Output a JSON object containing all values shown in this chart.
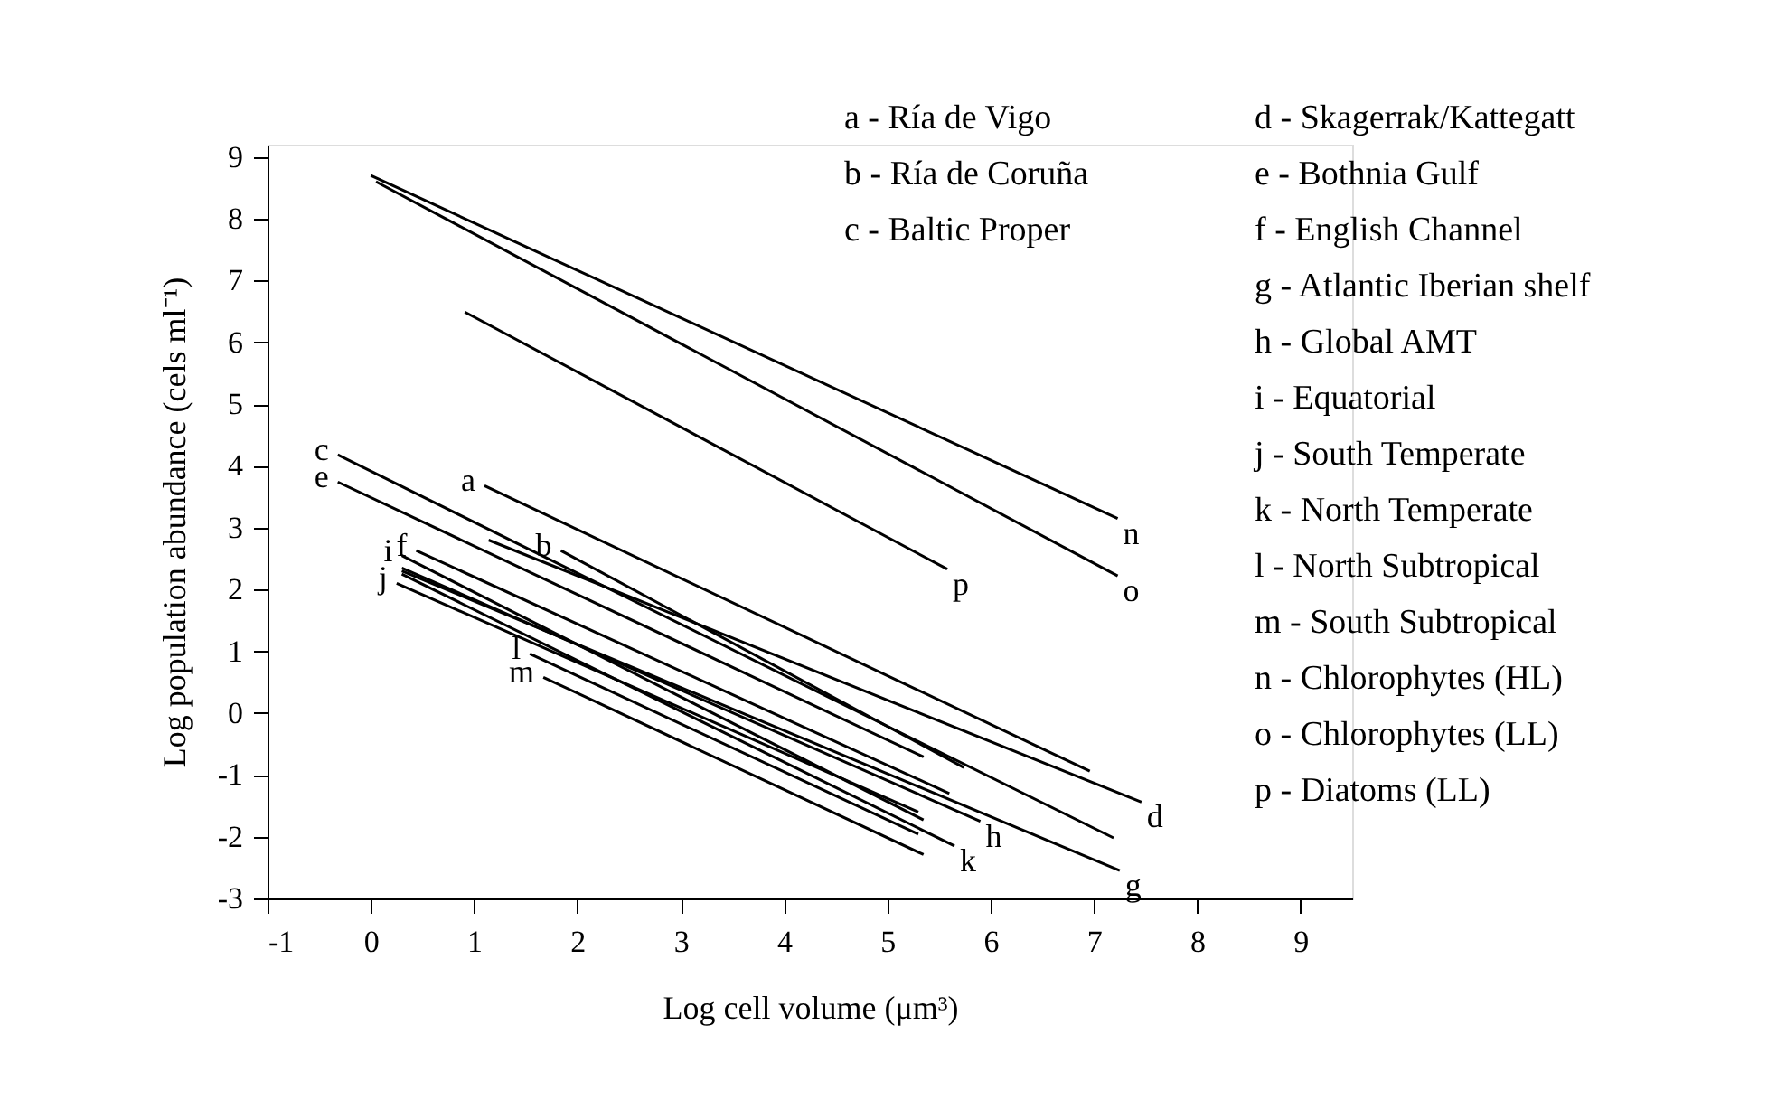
{
  "chart_data": {
    "type": "line",
    "xlabel": "Log cell volume (μm³)",
    "ylabel": "Log population abundance (cels ml⁻¹)",
    "xlim": [
      -1,
      9.5
    ],
    "ylim": [
      -3,
      9.2
    ],
    "xticks": [
      -1,
      0,
      1,
      2,
      3,
      4,
      5,
      6,
      7,
      8,
      9
    ],
    "yticks": [
      -3,
      -2,
      -1,
      0,
      1,
      2,
      3,
      4,
      5,
      6,
      7,
      8,
      9
    ],
    "grid": false,
    "legend": false,
    "marker": "none",
    "line_style": "solid",
    "series": [
      {
        "color": "#000000",
        "x": [
          1.1,
          6.96
        ],
        "values": [
          3.68,
          -0.94
        ]
      },
      {
        "color": "#000000",
        "x": [
          1.84,
          5.74
        ],
        "values": [
          2.63,
          -0.88
        ]
      },
      {
        "color": "#000000",
        "x": [
          -0.32,
          7.19
        ],
        "values": [
          4.18,
          -2.02
        ]
      },
      {
        "color": "#000000",
        "x": [
          1.14,
          7.46
        ],
        "values": [
          2.8,
          -1.44
        ]
      },
      {
        "color": "#000000",
        "x": [
          -0.32,
          5.35
        ],
        "values": [
          3.74,
          -0.71
        ]
      },
      {
        "color": "#000000",
        "x": [
          0.44,
          5.6
        ],
        "values": [
          2.63,
          -1.3
        ]
      },
      {
        "color": "#000000",
        "x": [
          0.3,
          7.25
        ],
        "values": [
          2.3,
          -2.55
        ]
      },
      {
        "color": "#000000",
        "x": [
          0.3,
          5.9
        ],
        "values": [
          2.35,
          -1.75
        ]
      },
      {
        "color": "#000000",
        "x": [
          0.3,
          5.35
        ],
        "values": [
          2.55,
          -1.73
        ]
      },
      {
        "color": "#000000",
        "x": [
          0.25,
          5.3
        ],
        "values": [
          2.1,
          -1.6
        ]
      },
      {
        "color": "#000000",
        "x": [
          0.3,
          5.65
        ],
        "values": [
          2.25,
          -2.15
        ]
      },
      {
        "color": "#000000",
        "x": [
          1.54,
          5.3
        ],
        "values": [
          0.96,
          -1.96
        ]
      },
      {
        "color": "#000000",
        "x": [
          1.67,
          5.35
        ],
        "values": [
          0.58,
          -2.29
        ]
      },
      {
        "color": "#000000",
        "x": [
          0.0,
          7.23
        ],
        "values": [
          8.7,
          3.15
        ]
      },
      {
        "color": "#000000",
        "x": [
          0.05,
          7.23
        ],
        "values": [
          8.6,
          2.22
        ]
      },
      {
        "color": "#000000",
        "x": [
          0.91,
          5.58
        ],
        "values": [
          6.49,
          2.33
        ]
      }
    ],
    "annotations": [
      {
        "text": "a",
        "x": 1.1,
        "y": 3.68
      },
      {
        "text": "b",
        "x": 1.84,
        "y": 2.63
      },
      {
        "text": "c",
        "x": -0.32,
        "y": 4.18
      },
      {
        "text": "d",
        "x": 7.46,
        "y": -1.44
      },
      {
        "text": "e",
        "x": -0.32,
        "y": 3.74
      },
      {
        "text": "f",
        "x": 0.44,
        "y": 2.63
      },
      {
        "text": "g",
        "x": 7.25,
        "y": -2.55
      },
      {
        "text": "h",
        "x": 5.9,
        "y": -1.75
      },
      {
        "text": "i",
        "x": 0.3,
        "y": 2.55
      },
      {
        "text": "j",
        "x": 0.25,
        "y": 2.1
      },
      {
        "text": "k",
        "x": 5.65,
        "y": -2.15
      },
      {
        "text": "l",
        "x": 1.54,
        "y": 0.96
      },
      {
        "text": "m",
        "x": 1.67,
        "y": 0.58
      },
      {
        "text": "n",
        "x": 7.23,
        "y": 3.15
      },
      {
        "text": "o",
        "x": 7.23,
        "y": 2.22
      },
      {
        "text": "p",
        "x": 5.58,
        "y": 2.33
      },
      "a - Ría de Vigo",
      "b - Ría de Coruña",
      "c - Baltic Proper",
      "d - Skagerrak/Kattegatt",
      "e - Bothnia Gulf",
      "f - English Channel",
      "g - Atlantic Iberian shelf",
      "h - Global AMT",
      "i - Equatorial",
      "j - South Temperate",
      "k - North Temperate",
      "l - North Subtropical",
      "m - South Subtropical",
      "n - Chlorophytes (HL)",
      "o - Chlorophytes (LL)",
      "p - Diatoms (LL)"
    ]
  }
}
